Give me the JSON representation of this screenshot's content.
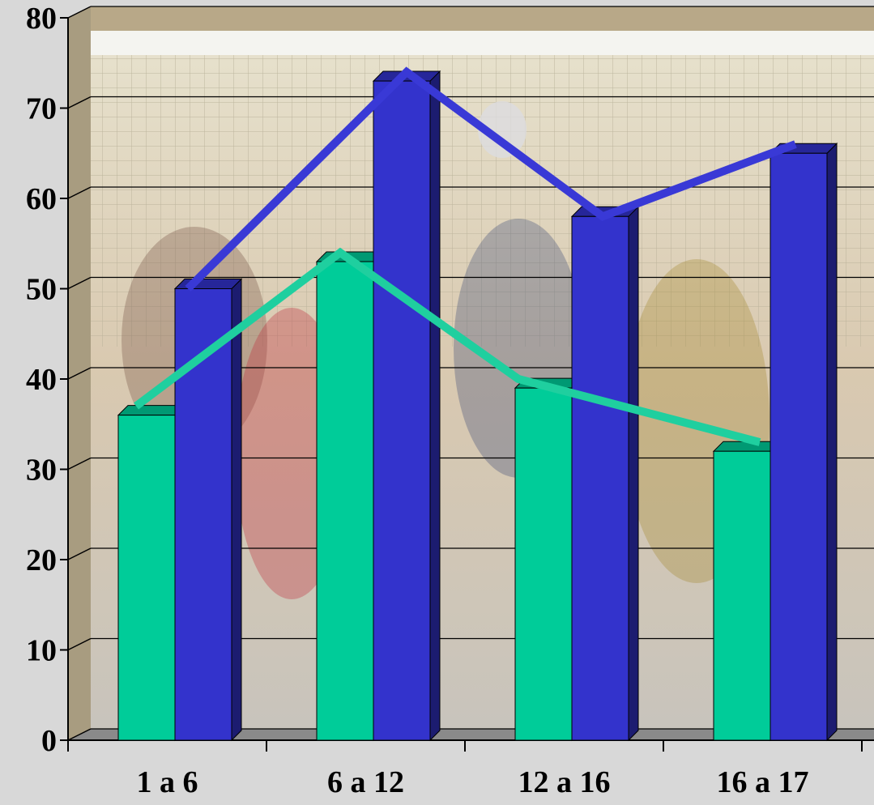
{
  "chart_data": {
    "type": "bar",
    "title": "",
    "xlabel": "",
    "ylabel": "",
    "categories": [
      "1 a 6",
      "6 a 12",
      "12 a 16",
      "16 a 17"
    ],
    "ylim": [
      0,
      80
    ],
    "yticks": [
      0,
      10,
      20,
      30,
      40,
      50,
      60,
      70,
      80
    ],
    "grid": true,
    "series": [
      {
        "values": [
          36,
          53,
          39,
          32
        ],
        "color": "#00cc99",
        "line_values": [
          37,
          54,
          40,
          33
        ],
        "line_color": "#1fcf9f"
      },
      {
        "values": [
          50,
          73,
          58,
          65
        ],
        "color": "#3333cc",
        "line_values": [
          50,
          74,
          58,
          66
        ],
        "line_color": "#3939d6"
      }
    ],
    "background": "photo of volleyball players in front of a net (decorative)"
  }
}
